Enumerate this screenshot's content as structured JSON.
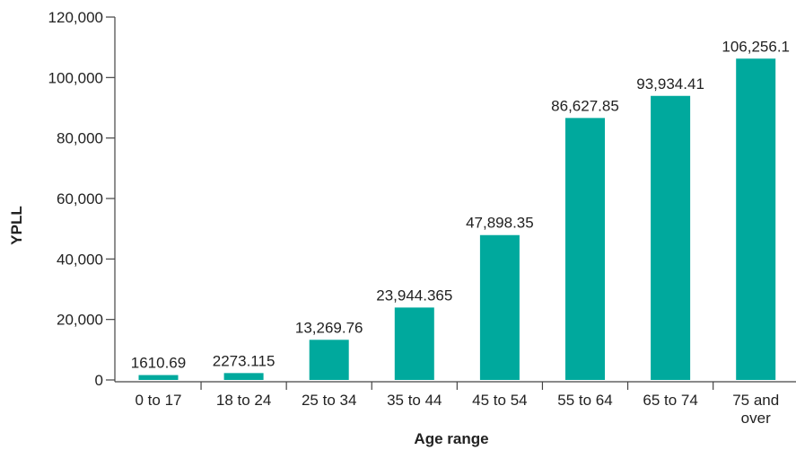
{
  "chart_data": {
    "type": "bar",
    "title": "",
    "xlabel": "Age range",
    "ylabel": "YPLL",
    "ylim": [
      0,
      120000
    ],
    "yticks": [
      0,
      20000,
      40000,
      60000,
      80000,
      100000,
      120000
    ],
    "ytick_labels": [
      "0",
      "20,000",
      "40,000",
      "60,000",
      "80,000",
      "100,000",
      "120,000"
    ],
    "categories": [
      [
        "0 to 17"
      ],
      [
        "18 to 24"
      ],
      [
        "25 to 34"
      ],
      [
        "35 to 44"
      ],
      [
        "45 to 54"
      ],
      [
        "55 to 64"
      ],
      [
        "65 to 74"
      ],
      [
        "75 and",
        "over"
      ]
    ],
    "values": [
      1610.69,
      2273.115,
      13269.76,
      23944.365,
      47898.35,
      86627.85,
      93934.41,
      106256.1
    ],
    "value_labels": [
      "1610.69",
      "2273.115",
      "13,269.76",
      "23,944.365",
      "47,898.35",
      "86,627.85",
      "93,934.41",
      "106,256.1"
    ],
    "bar_color": "#00a99d",
    "grid": false
  }
}
